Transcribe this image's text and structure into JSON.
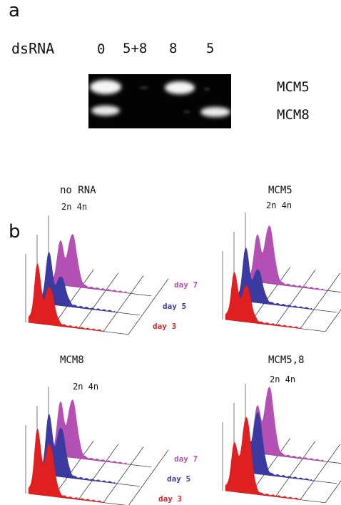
{
  "panel_a": {
    "letter": "a",
    "row_label": "dsRNA",
    "lanes": [
      "0",
      "5+8",
      "8",
      "5"
    ],
    "bands": [
      "MCM5",
      "MCM8"
    ]
  },
  "panel_b": {
    "letter": "b",
    "histograms": [
      {
        "title": "no RNA",
        "ploidy": "2n  4n"
      },
      {
        "title": "MCM5",
        "ploidy": "2n  4n"
      },
      {
        "title": "MCM8",
        "ploidy": "2n  4n"
      },
      {
        "title": "MCM5,8",
        "ploidy": "2n  4n"
      }
    ],
    "days": [
      {
        "label": "day 7",
        "color": "#b44fb4"
      },
      {
        "label": "day 5",
        "color": "#3a3aa0"
      },
      {
        "label": "day 3",
        "color": "#e02020"
      }
    ]
  }
}
